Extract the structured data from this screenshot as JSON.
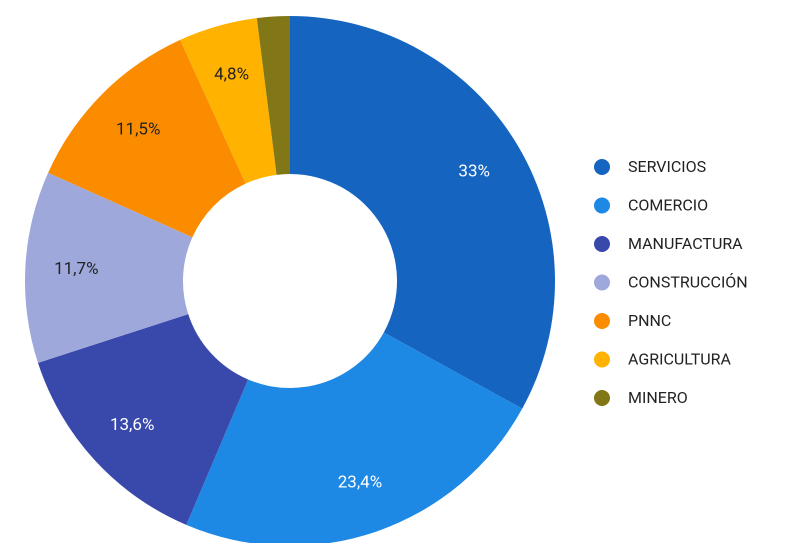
{
  "chart_data": {
    "type": "pie",
    "categories": [
      "SERVICIOS",
      "COMERCIO",
      "MANUFACTURA",
      "CONSTRUCCIÓN",
      "PNNC",
      "AGRICULTURA",
      "MINERO"
    ],
    "values": [
      33,
      23.4,
      13.6,
      11.7,
      11.5,
      4.8,
      2
    ],
    "value_labels": [
      "33%",
      "23,4%",
      "13,6%",
      "11,7%",
      "11,5%",
      "4,8%",
      null
    ],
    "colors": [
      "#1565c0",
      "#1e88e5",
      "#3949ab",
      "#9fa8da",
      "#fb8c00",
      "#ffb300",
      "#827717"
    ],
    "legend": "right"
  }
}
